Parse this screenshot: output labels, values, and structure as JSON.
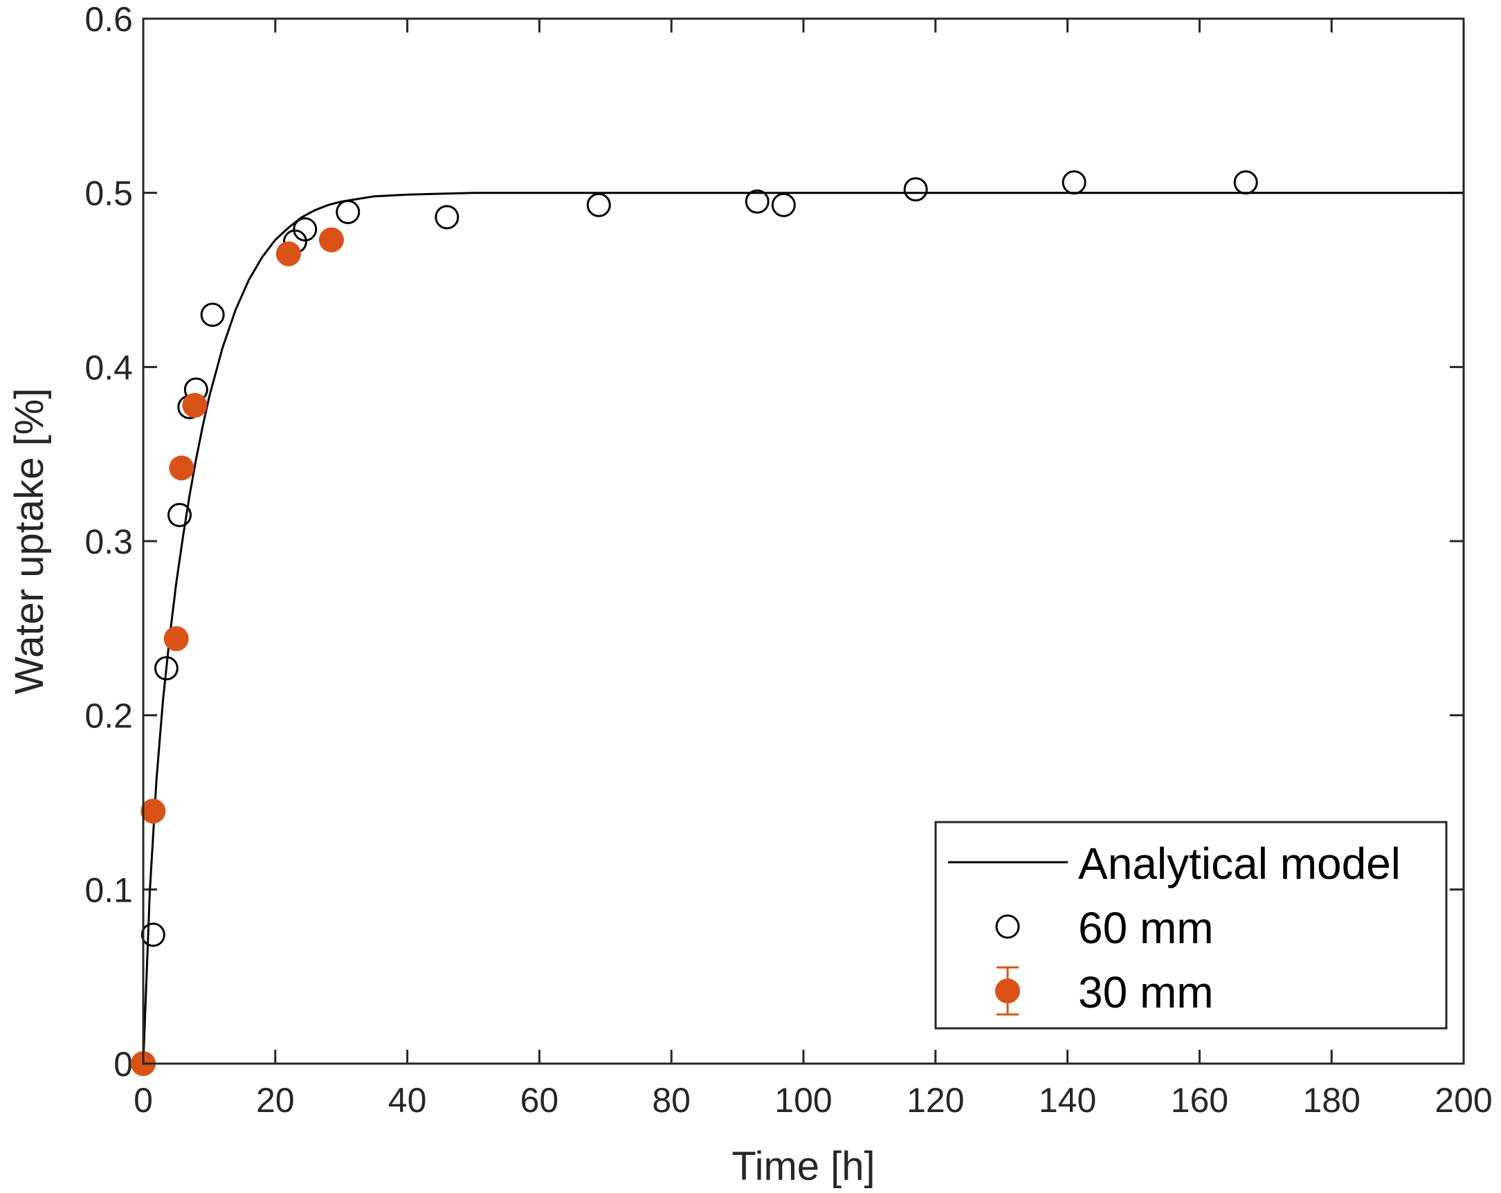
{
  "chart_data": {
    "type": "scatter",
    "xlabel": "Time [h]",
    "ylabel": "Water uptake [%]",
    "xlim": [
      0,
      200
    ],
    "ylim": [
      0,
      0.6
    ],
    "xticks": [
      0,
      20,
      40,
      60,
      80,
      100,
      120,
      140,
      160,
      180,
      200
    ],
    "yticks": [
      0,
      0.1,
      0.2,
      0.3,
      0.4,
      0.5,
      0.6
    ],
    "xtick_labels": [
      "0",
      "20",
      "40",
      "60",
      "80",
      "100",
      "120",
      "140",
      "160",
      "180",
      "200"
    ],
    "ytick_labels": [
      "0",
      "0.1",
      "0.2",
      "0.3",
      "0.4",
      "0.5",
      "0.6"
    ],
    "grid": false,
    "legend_position": "bottom-right",
    "series": [
      {
        "name": "Analytical model",
        "kind": "line",
        "color": "#000000",
        "x": [
          0,
          1,
          2,
          3,
          4,
          5,
          6,
          7,
          8,
          9,
          10,
          12,
          14,
          16,
          18,
          20,
          22,
          24,
          26,
          28,
          30,
          35,
          40,
          50,
          60,
          80,
          100,
          150,
          200
        ],
        "y": [
          0,
          0.099,
          0.163,
          0.209,
          0.245,
          0.276,
          0.302,
          0.326,
          0.347,
          0.366,
          0.383,
          0.411,
          0.433,
          0.45,
          0.463,
          0.473,
          0.48,
          0.486,
          0.49,
          0.493,
          0.495,
          0.498,
          0.499,
          0.5,
          0.5,
          0.5,
          0.5,
          0.5,
          0.5
        ]
      },
      {
        "name": "60 mm",
        "kind": "scatter",
        "marker": "open-circle",
        "color": "#000000",
        "x": [
          1.5,
          3.5,
          5.5,
          7,
          8,
          10.5,
          23,
          24.5,
          31,
          46,
          69,
          93,
          97,
          117,
          141,
          167
        ],
        "y": [
          0.074,
          0.227,
          0.315,
          0.377,
          0.387,
          0.43,
          0.472,
          0.479,
          0.489,
          0.486,
          0.493,
          0.495,
          0.493,
          0.502,
          0.506,
          0.506
        ]
      },
      {
        "name": "30 mm",
        "kind": "scatter",
        "marker": "filled-circle",
        "error_bars": true,
        "color": "#D95319",
        "x": [
          0,
          1.5,
          5,
          5.8,
          7.8,
          22,
          28.5
        ],
        "y": [
          0,
          0.145,
          0.244,
          0.342,
          0.378,
          0.465,
          0.473
        ]
      }
    ]
  }
}
